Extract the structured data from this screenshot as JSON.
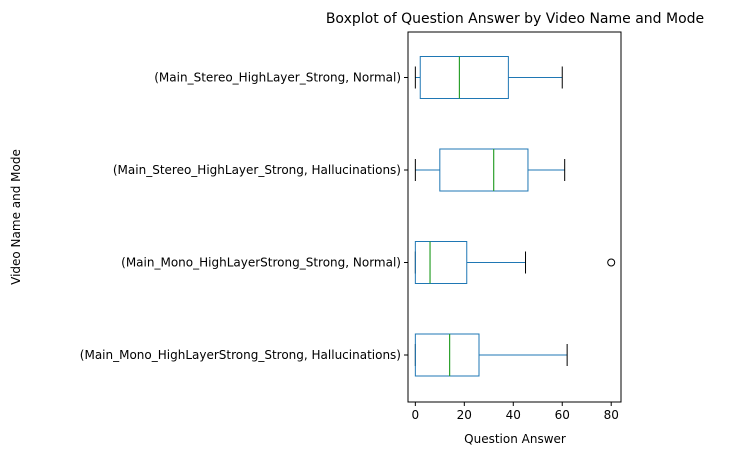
{
  "chart_data": {
    "type": "boxplot",
    "orientation": "horizontal",
    "title": "Boxplot of Question Answer by Video Name and Mode",
    "xlabel": "Question Answer",
    "ylabel": "Video Name and Mode",
    "xlim": [
      -3,
      84
    ],
    "xticks": [
      0,
      20,
      40,
      60,
      80
    ],
    "grid": false,
    "colors": {
      "box": "#1f77b4",
      "median": "#2ca02c",
      "whisker": "#1f77b4",
      "cap": "#000000",
      "flier": "#000000"
    },
    "categories": [
      "(Main_Stereo_HighLayer_Strong, Normal)",
      "(Main_Stereo_HighLayer_Strong, Hallucinations)",
      "(Main_Mono_HighLayerStrong_Strong, Normal)",
      "(Main_Mono_HighLayerStrong_Strong, Hallucinations)"
    ],
    "boxes": [
      {
        "whislo": 0,
        "q1": 2,
        "med": 18,
        "q3": 38,
        "whishi": 60,
        "fliers": []
      },
      {
        "whislo": 0,
        "q1": 10,
        "med": 32,
        "q3": 46,
        "whishi": 61,
        "fliers": []
      },
      {
        "whislo": 0,
        "q1": 0,
        "med": 6,
        "q3": 21,
        "whishi": 45,
        "fliers": [
          80
        ]
      },
      {
        "whislo": 0,
        "q1": 0,
        "med": 14,
        "q3": 26,
        "whishi": 62,
        "fliers": []
      }
    ]
  }
}
